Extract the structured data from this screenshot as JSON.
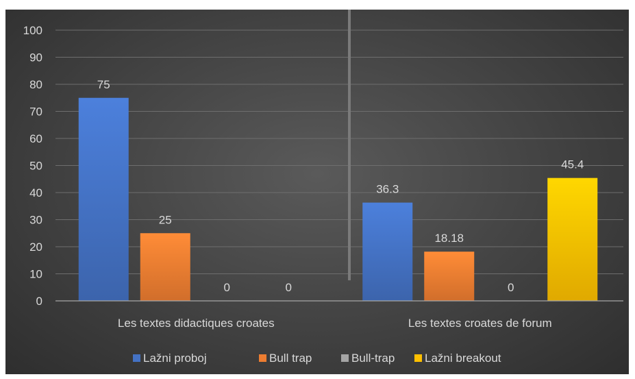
{
  "chart_data": {
    "type": "bar",
    "title": "",
    "xlabel": "",
    "ylabel": "",
    "ylim": [
      0,
      100
    ],
    "yticks": [
      0,
      10,
      20,
      30,
      40,
      50,
      60,
      70,
      80,
      90,
      100
    ],
    "grid": true,
    "legend_position": "bottom",
    "categories": [
      "Les textes didactiques croates",
      "Les textes croates de forum"
    ],
    "series": [
      {
        "name": "Lažni proboj",
        "color": "#4472c4",
        "values": [
          75,
          36.3
        ],
        "labels": [
          "75",
          "36.3"
        ]
      },
      {
        "name": "Bull trap",
        "color": "#ed7d31",
        "values": [
          25,
          18.18
        ],
        "labels": [
          "25",
          "18.18"
        ]
      },
      {
        "name": "Bull-trap",
        "color": "#a5a5a5",
        "values": [
          0,
          0
        ],
        "labels": [
          "0",
          "0"
        ]
      },
      {
        "name": "Lažni breakout",
        "color": "#ffc000",
        "values": [
          0,
          45.4
        ],
        "labels": [
          "0",
          "45.4"
        ]
      }
    ],
    "annotations": [
      "vertical divider between the two category groups"
    ]
  }
}
